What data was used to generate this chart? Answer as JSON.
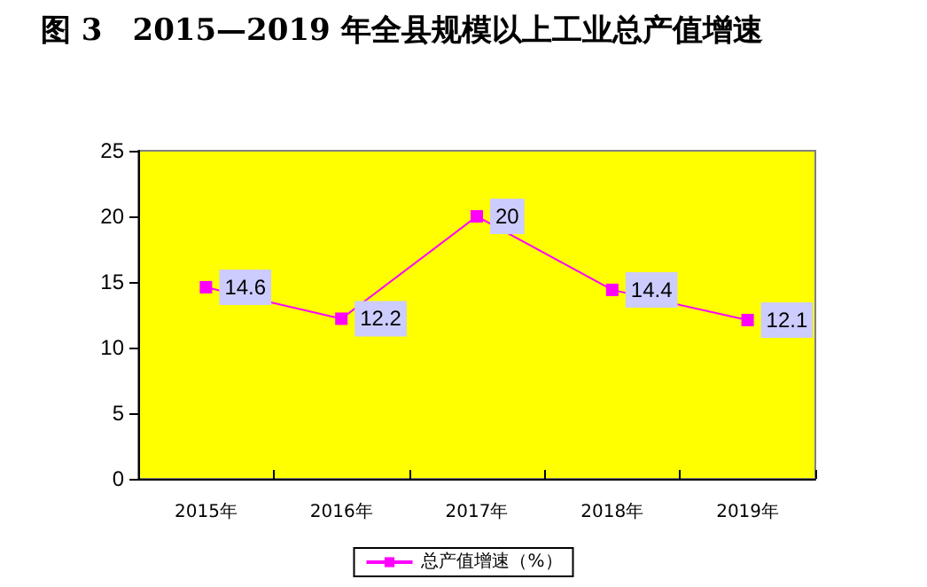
{
  "chart_data": {
    "type": "line",
    "title": "图 3　2015—2019 年全县规模以上工业总产值增速",
    "categories": [
      "2015年",
      "2016年",
      "2017年",
      "2018年",
      "2019年"
    ],
    "series": [
      {
        "name": "总产值增速（%）",
        "color": "#ff00ff",
        "values": [
          14.6,
          12.2,
          20,
          14.4,
          12.1
        ]
      }
    ],
    "ylim": [
      0,
      25
    ],
    "yticks": [
      0,
      5,
      10,
      15,
      20,
      25
    ],
    "grid": false,
    "legend": "bottom",
    "marker": "square",
    "line_style": "solid",
    "data_labels": true
  }
}
